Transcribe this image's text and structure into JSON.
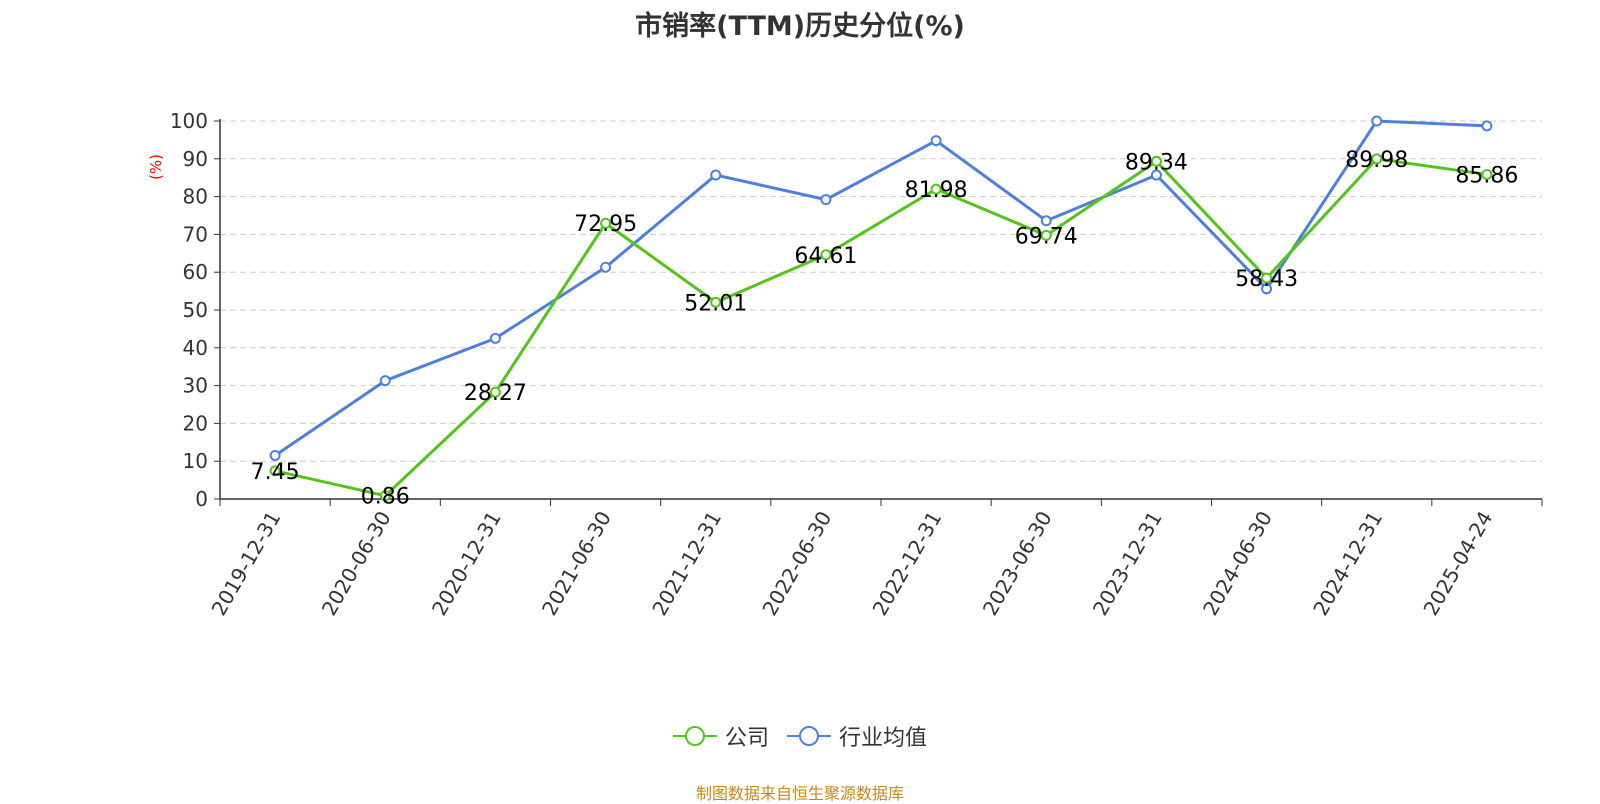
{
  "chart_data": {
    "type": "line",
    "title": "市销率(TTM)历史分位(%)",
    "ylabel": "(%)",
    "xlabel": "",
    "ylim": [
      0,
      100
    ],
    "yticks": [
      0,
      10,
      20,
      30,
      40,
      50,
      60,
      70,
      80,
      90,
      100
    ],
    "grid": true,
    "legend_position": "bottom",
    "categories": [
      "2019-12-31",
      "2020-06-30",
      "2020-12-31",
      "2021-06-30",
      "2021-12-31",
      "2022-06-30",
      "2022-12-31",
      "2023-06-30",
      "2023-12-31",
      "2024-06-30",
      "2024-12-31",
      "2025-04-24"
    ],
    "series": [
      {
        "name": "公司",
        "color": "#52c41a",
        "values": [
          7.45,
          0.86,
          28.27,
          72.95,
          52.01,
          64.61,
          81.98,
          69.74,
          89.34,
          58.43,
          89.98,
          85.86
        ],
        "labels": [
          "7.45",
          "0.86",
          "28.27",
          "72.95",
          "52.01",
          "64.61",
          "81.98",
          "69.74",
          "89.34",
          "58.43",
          "89.98",
          "85.86"
        ]
      },
      {
        "name": "行业均值",
        "color": "#4e7fdc",
        "values": [
          11.5,
          31.3,
          42.5,
          61.3,
          85.7,
          79.2,
          94.8,
          73.6,
          85.7,
          55.6,
          100,
          98.7
        ]
      }
    ]
  },
  "source_text": "制图数据来自恒生聚源数据库"
}
